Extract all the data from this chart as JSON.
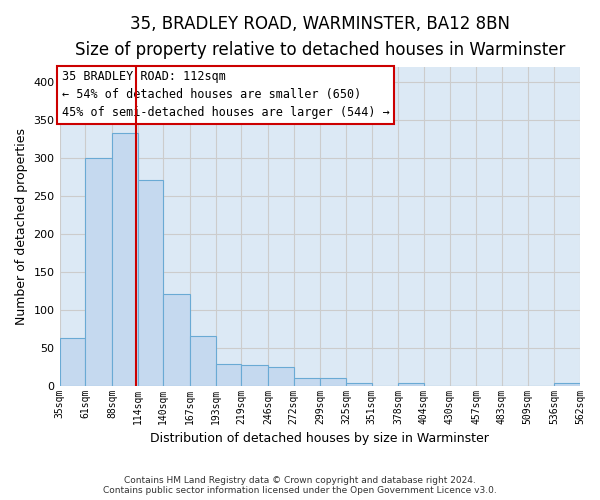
{
  "title1": "35, BRADLEY ROAD, WARMINSTER, BA12 8BN",
  "title2": "Size of property relative to detached houses in Warminster",
  "xlabel": "Distribution of detached houses by size in Warminster",
  "ylabel": "Number of detached properties",
  "bar_values": [
    63,
    300,
    333,
    270,
    120,
    65,
    29,
    27,
    25,
    10,
    10,
    4,
    0,
    4,
    0,
    0,
    0,
    0,
    0,
    4
  ],
  "bin_edges": [
    35,
    61,
    88,
    114,
    140,
    167,
    193,
    219,
    246,
    272,
    299,
    325,
    351,
    378,
    404,
    430,
    457,
    483,
    509,
    536,
    562
  ],
  "tick_labels": [
    "35sqm",
    "61sqm",
    "88sqm",
    "114sqm",
    "140sqm",
    "167sqm",
    "193sqm",
    "219sqm",
    "246sqm",
    "272sqm",
    "299sqm",
    "325sqm",
    "351sqm",
    "378sqm",
    "404sqm",
    "430sqm",
    "457sqm",
    "483sqm",
    "509sqm",
    "536sqm",
    "562sqm"
  ],
  "bar_color": "#c5d9ef",
  "bar_edge_color": "#6aaad4",
  "vline_x": 112,
  "vline_color": "#cc0000",
  "annotation_text": "35 BRADLEY ROAD: 112sqm\n← 54% of detached houses are smaller (650)\n45% of semi-detached houses are larger (544) →",
  "annotation_box_color": "#ffffff",
  "annotation_box_edge": "#cc0000",
  "ylim": [
    0,
    420
  ],
  "yticks": [
    0,
    50,
    100,
    150,
    200,
    250,
    300,
    350,
    400
  ],
  "grid_color": "#cccccc",
  "background_color": "#dce9f5",
  "footnote": "Contains HM Land Registry data © Crown copyright and database right 2024.\nContains public sector information licensed under the Open Government Licence v3.0.",
  "title1_fontsize": 12,
  "title2_fontsize": 10,
  "xlabel_fontsize": 9,
  "ylabel_fontsize": 9,
  "annotation_fontsize": 8.5,
  "tick_fontsize": 7
}
